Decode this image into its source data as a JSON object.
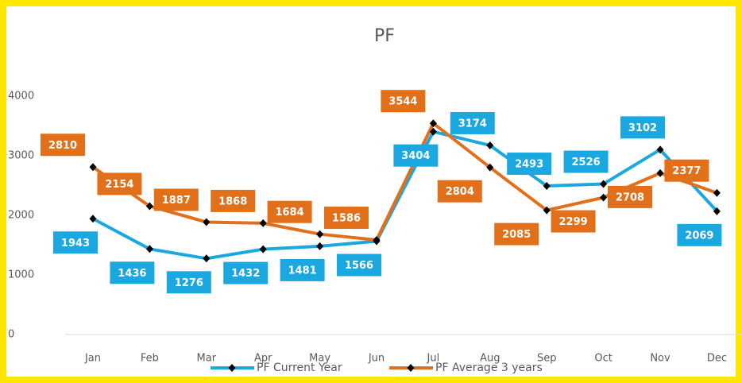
{
  "chart_data": {
    "type": "line",
    "title": "PF",
    "categories": [
      "Jan",
      "Feb",
      "Mar",
      "Apr",
      "May",
      "Jun",
      "Jul",
      "Aug",
      "Sep",
      "Oct",
      "Nov",
      "Dec"
    ],
    "series": [
      {
        "name": "PF Current Year",
        "color": "#1ba8e0",
        "values": [
          1943,
          1436,
          1276,
          1432,
          1481,
          1566,
          3404,
          3174,
          2493,
          2526,
          3102,
          2069
        ]
      },
      {
        "name": "PF Average 3 years",
        "color": "#e2701b",
        "values": [
          2810,
          2154,
          1887,
          1868,
          1684,
          1586,
          3544,
          2804,
          2085,
          2299,
          2708,
          2377
        ]
      }
    ],
    "ylim": [
      0,
      4000
    ],
    "yticks": [
      0,
      1000,
      2000,
      3000,
      4000
    ],
    "grid": false,
    "legend": "bottom"
  }
}
